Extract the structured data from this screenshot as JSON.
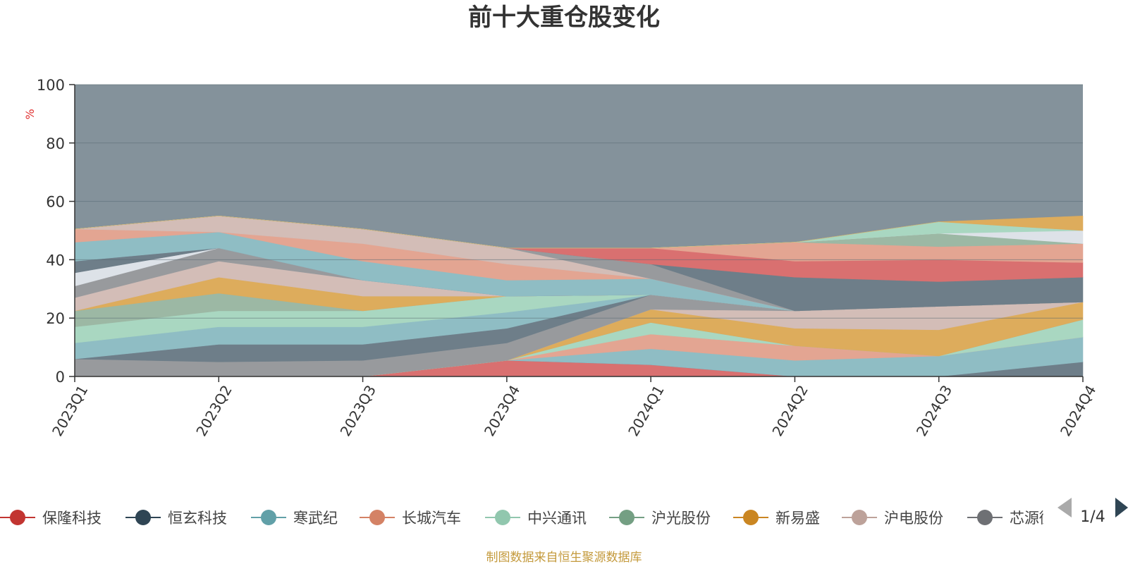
{
  "title": "前十大重仓股变化",
  "footer": "制图数据来自恒生聚源数据库",
  "legend_page": "1/4",
  "colors": {
    "background_area": "#84929B",
    "unit_label": "#e03030",
    "footer_text": "#c49a3c",
    "page_arrow_inactive": "#aaaaaa",
    "page_arrow_active": "#2f4554"
  },
  "chart_data": {
    "type": "area",
    "stacked": true,
    "categories": [
      "2023Q1",
      "2023Q2",
      "2023Q3",
      "2023Q4",
      "2024Q1",
      "2024Q2",
      "2024Q3",
      "2024Q4"
    ],
    "ylabel": "%",
    "ylim": [
      0,
      100
    ],
    "yticks": [
      0,
      20,
      40,
      60,
      80,
      100
    ],
    "grid": true,
    "legend_position": "bottom",
    "legend_entries": [
      "保隆科技",
      "恒玄科技",
      "寒武纪",
      "长城汽车",
      "中兴通讯",
      "沪光股份",
      "新易盛",
      "沪电股份",
      "芯源微"
    ],
    "series": [
      {
        "name": "保隆科技",
        "color": "#d97070",
        "values": [
          0,
          0,
          0,
          5.5,
          4,
          0,
          0,
          0
        ]
      },
      {
        "name": "恒玄科技",
        "color": "#6e7e89",
        "values": [
          0,
          0,
          0,
          0,
          0,
          0,
          0,
          5
        ]
      },
      {
        "name": "寒武纪",
        "color": "#8fbdc4",
        "values": [
          0,
          0,
          0,
          0,
          5.5,
          5.5,
          7,
          8.5
        ]
      },
      {
        "name": "长城汽车",
        "color": "#e3a592",
        "values": [
          0,
          0,
          0,
          0,
          5,
          5,
          0,
          0
        ]
      },
      {
        "name": "中兴通讯",
        "color": "#a9d7c1",
        "values": [
          0,
          0,
          0,
          0,
          4,
          0,
          0,
          6
        ]
      },
      {
        "name": "沪光股份",
        "color": "#9cb8a4",
        "values": [
          0,
          0,
          0,
          0,
          0,
          0,
          0,
          0
        ]
      },
      {
        "name": "新易盛",
        "color": "#ddac5c",
        "values": [
          0,
          0,
          0,
          0,
          4.5,
          6,
          9,
          6
        ]
      },
      {
        "name": "沪电股份",
        "color": "#d3bdb7",
        "values": [
          0,
          0,
          0,
          0,
          0,
          6,
          8,
          0
        ]
      },
      {
        "name": "芯源微",
        "color": "#989a9d",
        "values": [
          6,
          5,
          5.5,
          6,
          5,
          0,
          0,
          0
        ]
      },
      {
        "name": "",
        "color": "#6e7e89",
        "values": [
          0,
          6,
          5.5,
          5,
          0,
          0,
          0,
          0
        ]
      },
      {
        "name": "",
        "color": "#8fbdc4",
        "values": [
          5.5,
          6,
          6,
          5.5,
          0,
          0,
          0,
          0
        ]
      },
      {
        "name": "",
        "color": "#a9d7c1",
        "values": [
          5.5,
          5.5,
          5.5,
          5.5,
          0,
          0,
          0,
          0
        ]
      },
      {
        "name": "",
        "color": "#9cb8a4",
        "values": [
          5.5,
          6,
          0,
          0,
          0,
          0,
          0,
          0
        ]
      },
      {
        "name": "",
        "color": "#ddac5c",
        "values": [
          0,
          5.5,
          5,
          0,
          0,
          0,
          0,
          0
        ]
      },
      {
        "name": "",
        "color": "#d3bdb7",
        "values": [
          4.5,
          5.5,
          5.5,
          0,
          0,
          0,
          0,
          0
        ]
      },
      {
        "name": "",
        "color": "#989a9d",
        "values": [
          4,
          4.5,
          0,
          0,
          0,
          0,
          0,
          0
        ]
      },
      {
        "name": "",
        "color": "#dde2e8",
        "values": [
          4.5,
          0,
          0,
          0,
          0,
          0,
          0,
          0
        ]
      },
      {
        "name": "",
        "color": "#6e7e89",
        "values": [
          4,
          0,
          0,
          0,
          0,
          0,
          0,
          0
        ]
      },
      {
        "name": "",
        "color": "#8fbdc4",
        "values": [
          6.5,
          5.5,
          6.5,
          5.5,
          5.5,
          0,
          0,
          0
        ]
      },
      {
        "name": "",
        "color": "#e3a592",
        "values": [
          4.5,
          0,
          6,
          5.5,
          0,
          0,
          0,
          0
        ]
      },
      {
        "name": "",
        "color": "#d3bdb7",
        "values": [
          0,
          5.5,
          5,
          5.5,
          0,
          0,
          0,
          0
        ]
      },
      {
        "name": "",
        "color": "#989a9d",
        "values": [
          0,
          0,
          0,
          0,
          5,
          0,
          0,
          0
        ]
      },
      {
        "name": "",
        "color": "#6e7e89",
        "values": [
          0,
          0,
          0,
          0,
          0,
          11.5,
          8.5,
          8.5
        ]
      },
      {
        "name": "",
        "color": "#d97070",
        "values": [
          0,
          0,
          0,
          0,
          5.5,
          5.5,
          7.5,
          5
        ]
      },
      {
        "name": "",
        "color": "#e3a592",
        "values": [
          0,
          0,
          0,
          0,
          0,
          6.5,
          4.5,
          6.5
        ]
      },
      {
        "name": "",
        "color": "#9cb8a4",
        "values": [
          0,
          0,
          0,
          0,
          0,
          0,
          4.5,
          0
        ]
      },
      {
        "name": "",
        "color": "#dde2e8",
        "values": [
          0,
          0,
          0,
          0,
          0,
          0,
          0,
          4.5
        ]
      },
      {
        "name": "",
        "color": "#a9d7c1",
        "values": [
          0,
          0,
          0,
          0,
          0,
          0,
          4,
          0
        ]
      },
      {
        "name": "",
        "color": "#ddac5c",
        "values": [
          0,
          0,
          0,
          0,
          0,
          0,
          0,
          5
        ]
      }
    ]
  }
}
